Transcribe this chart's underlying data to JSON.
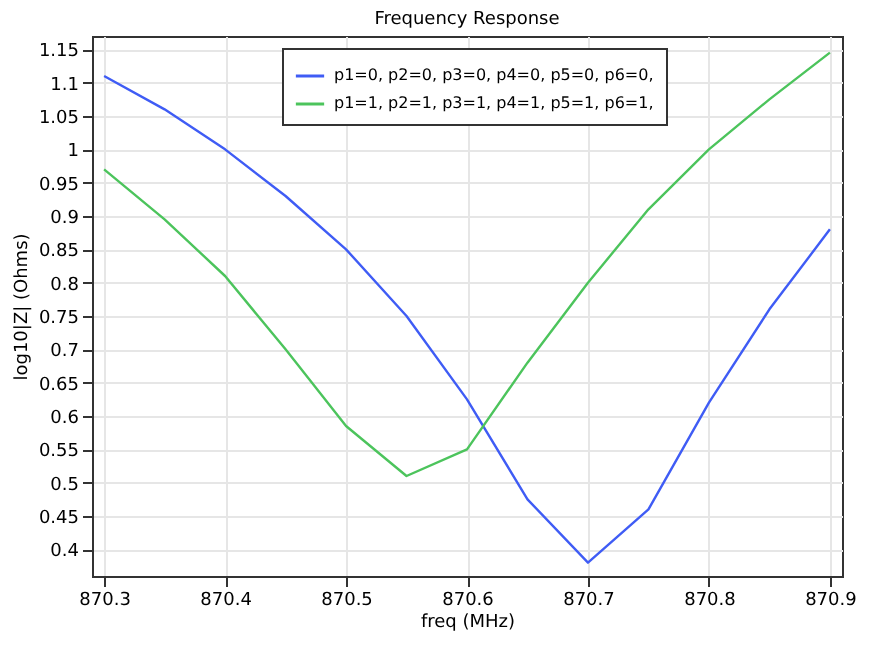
{
  "chart_data": {
    "type": "line",
    "title": "Frequency Response",
    "xlabel": "freq (MHz)",
    "ylabel": "log10|Z| (Ohms)",
    "x": [
      870.3,
      870.35,
      870.4,
      870.45,
      870.5,
      870.55,
      870.6,
      870.65,
      870.7,
      870.75,
      870.8,
      870.85,
      870.9
    ],
    "series": [
      {
        "name": "p1=0, p2=0, p3=0, p4=0, p5=0, p6=0,",
        "color": "#3f5cf5",
        "values": [
          1.11,
          1.06,
          1.0,
          0.93,
          0.85,
          0.75,
          0.625,
          0.475,
          0.38,
          0.46,
          0.62,
          0.76,
          0.88
        ]
      },
      {
        "name": "p1=1, p2=1, p3=1, p4=1, p5=1, p6=1,",
        "color": "#4cc45c",
        "values": [
          0.97,
          0.895,
          0.81,
          0.7,
          0.585,
          0.51,
          0.55,
          0.68,
          0.8,
          0.91,
          1.0,
          1.075,
          1.145
        ]
      }
    ],
    "xlim": [
      870.29,
      870.91
    ],
    "ylim": [
      0.36,
      1.17
    ],
    "xticks": [
      870.3,
      870.4,
      870.5,
      870.6,
      870.7,
      870.8,
      870.9
    ],
    "yticks": [
      0.4,
      0.45,
      0.5,
      0.55,
      0.6,
      0.65,
      0.7,
      0.75,
      0.8,
      0.85,
      0.9,
      0.95,
      1,
      1.05,
      1.1,
      1.15
    ],
    "grid": true,
    "legend": "top",
    "marker": "none",
    "line_style": "solid"
  }
}
